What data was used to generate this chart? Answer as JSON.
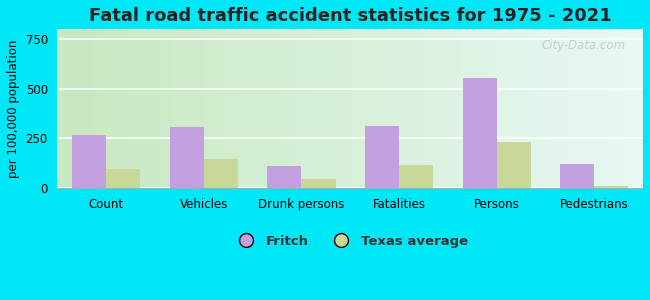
{
  "title": "Fatal road traffic accident statistics for 1975 - 2021",
  "ylabel": "per 100,000 population",
  "categories": [
    "Count",
    "Vehicles",
    "Drunk persons",
    "Fatalities",
    "Persons",
    "Pedestrians"
  ],
  "fritch_values": [
    265,
    310,
    110,
    315,
    555,
    120
  ],
  "texas_values": [
    95,
    145,
    45,
    115,
    230,
    10
  ],
  "fritch_color": "#c4a0e0",
  "texas_color": "#c8d898",
  "ylim": [
    0,
    800
  ],
  "yticks": [
    0,
    250,
    500,
    750
  ],
  "bar_width": 0.35,
  "outer_bg": "#00e8f8",
  "plot_bg_left": "#c8e8c8",
  "plot_bg_right": "#e8f8f4",
  "title_fontsize": 13,
  "axis_fontsize": 8.5,
  "tick_fontsize": 8.5,
  "legend_labels": [
    "Fritch",
    "Texas average"
  ],
  "watermark_text": "City-Data.com",
  "watermark_color": "#b8c8d8"
}
